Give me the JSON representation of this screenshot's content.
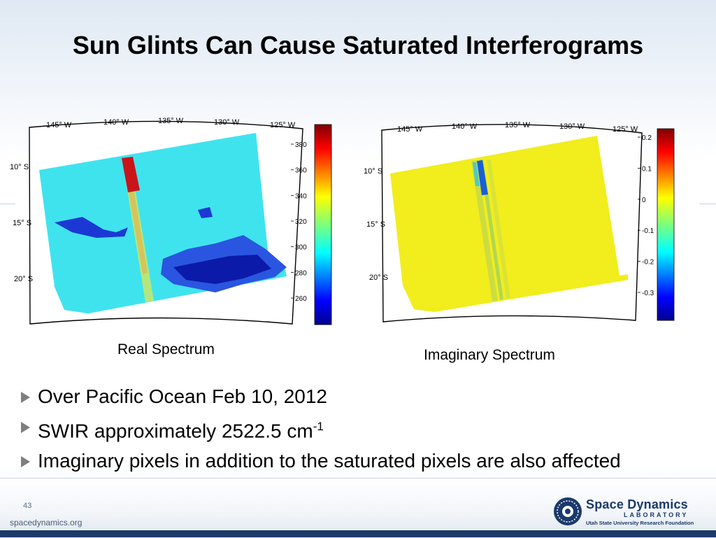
{
  "slide": {
    "title": "Sun Glints Can Cause Saturated Interferograms",
    "page_number": "43",
    "footer_url": "spacedynamics.org"
  },
  "logo": {
    "name": "Space Dynamics",
    "sub": "LABORATORY",
    "foot": "Utah State University Research Foundation"
  },
  "maps": [
    {
      "caption": "Real Spectrum",
      "lon_labels": [
        "145° W",
        "140° W",
        "135° W",
        "130° W",
        "125° W"
      ],
      "lat_labels": [
        "10° S",
        "15° S",
        "20° S"
      ],
      "colorbar_ticks": [
        "380",
        "360",
        "340",
        "320",
        "300",
        "280",
        "260"
      ],
      "colors": {
        "background": "#3fe3ee",
        "stripe": "#c8e86a",
        "glint": "#c8141a",
        "cloud": "#1c38d4"
      }
    },
    {
      "caption": "Imaginary Spectrum",
      "lon_labels": [
        "145° W",
        "140° W",
        "135° W",
        "130° W",
        "125° W"
      ],
      "lat_labels": [
        "10° S",
        "15° S",
        "20° S"
      ],
      "colorbar_ticks": [
        "0.2",
        "0.1",
        "0",
        "-0.1",
        "-0.2",
        "-0.3"
      ],
      "colors": {
        "background": "#f2ed1c",
        "stripe": "#d7e23a",
        "glint": "#1a5ed8"
      }
    }
  ],
  "bullets": [
    {
      "text": "Over Pacific Ocean Feb 10, 2012",
      "sup": ""
    },
    {
      "text": "SWIR approximately 2522.5 cm",
      "sup": "-1"
    },
    {
      "text": "Imaginary pixels in addition to the saturated pixels are also affected",
      "sup": ""
    }
  ]
}
